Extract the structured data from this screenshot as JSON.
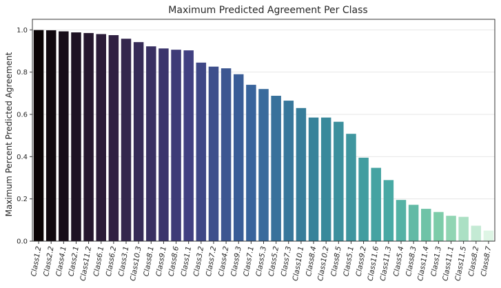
{
  "chart_data": {
    "type": "bar",
    "title": "Maximum Predicted Agreement Per Class",
    "xlabel": "",
    "ylabel": "Maximum Percent Predicted Agreement",
    "ylim": [
      0,
      1.05
    ],
    "yticks": [
      "0.0",
      "0.2",
      "0.4",
      "0.6",
      "0.8",
      "1.0"
    ],
    "grid": true,
    "palette": "mako",
    "categories": [
      "Class1.2",
      "Class2.2",
      "Class4.1",
      "Class2.1",
      "Class11.2",
      "Class6.1",
      "Class6.2",
      "Class3.1",
      "Class10.3",
      "Class8.1",
      "Class9.1",
      "Class8.6",
      "Class1.1",
      "Class3.2",
      "Class7.2",
      "Class4.2",
      "Class9.3",
      "Class7.1",
      "Class5.3",
      "Class5.2",
      "Class7.3",
      "Class10.1",
      "Class8.4",
      "Class10.2",
      "Class8.5",
      "Class5.1",
      "Class9.2",
      "Class11.6",
      "Class11.3",
      "Class5.4",
      "Class8.3",
      "Class11.4",
      "Class1.3",
      "Class11.1",
      "Class11.5",
      "Class8.2",
      "Class8.7"
    ],
    "values": [
      0.999,
      0.998,
      0.993,
      0.988,
      0.985,
      0.98,
      0.975,
      0.958,
      0.942,
      0.922,
      0.912,
      0.906,
      0.903,
      0.845,
      0.826,
      0.818,
      0.79,
      0.74,
      0.72,
      0.688,
      0.665,
      0.63,
      0.585,
      0.585,
      0.565,
      0.508,
      0.395,
      0.347,
      0.289,
      0.195,
      0.172,
      0.153,
      0.138,
      0.12,
      0.115,
      0.073,
      0.05
    ]
  }
}
